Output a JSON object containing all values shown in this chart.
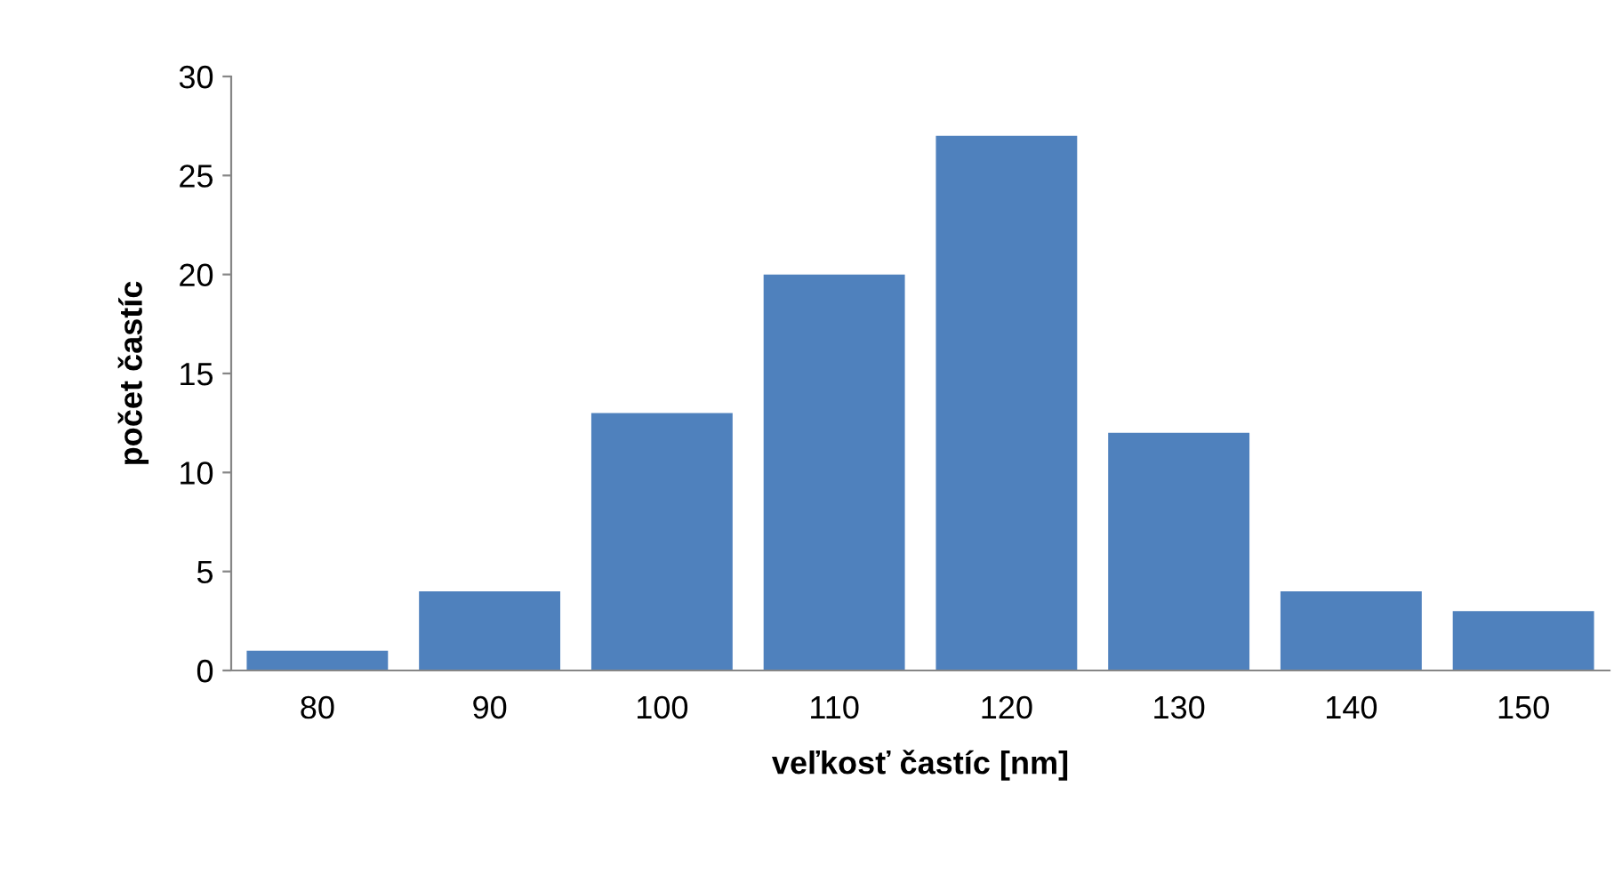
{
  "chart_data": {
    "type": "bar",
    "xlabel": "veľkosť častíc [nm]",
    "ylabel": "počet častíc",
    "categories": [
      "80",
      "90",
      "100",
      "110",
      "120",
      "130",
      "140",
      "150"
    ],
    "values": [
      1,
      4,
      13,
      20,
      27,
      12,
      4,
      3
    ],
    "color": "#4f81bd",
    "ylim": [
      0,
      30
    ],
    "yticks": [
      0,
      5,
      10,
      15,
      20,
      25,
      30
    ],
    "grid": false
  }
}
